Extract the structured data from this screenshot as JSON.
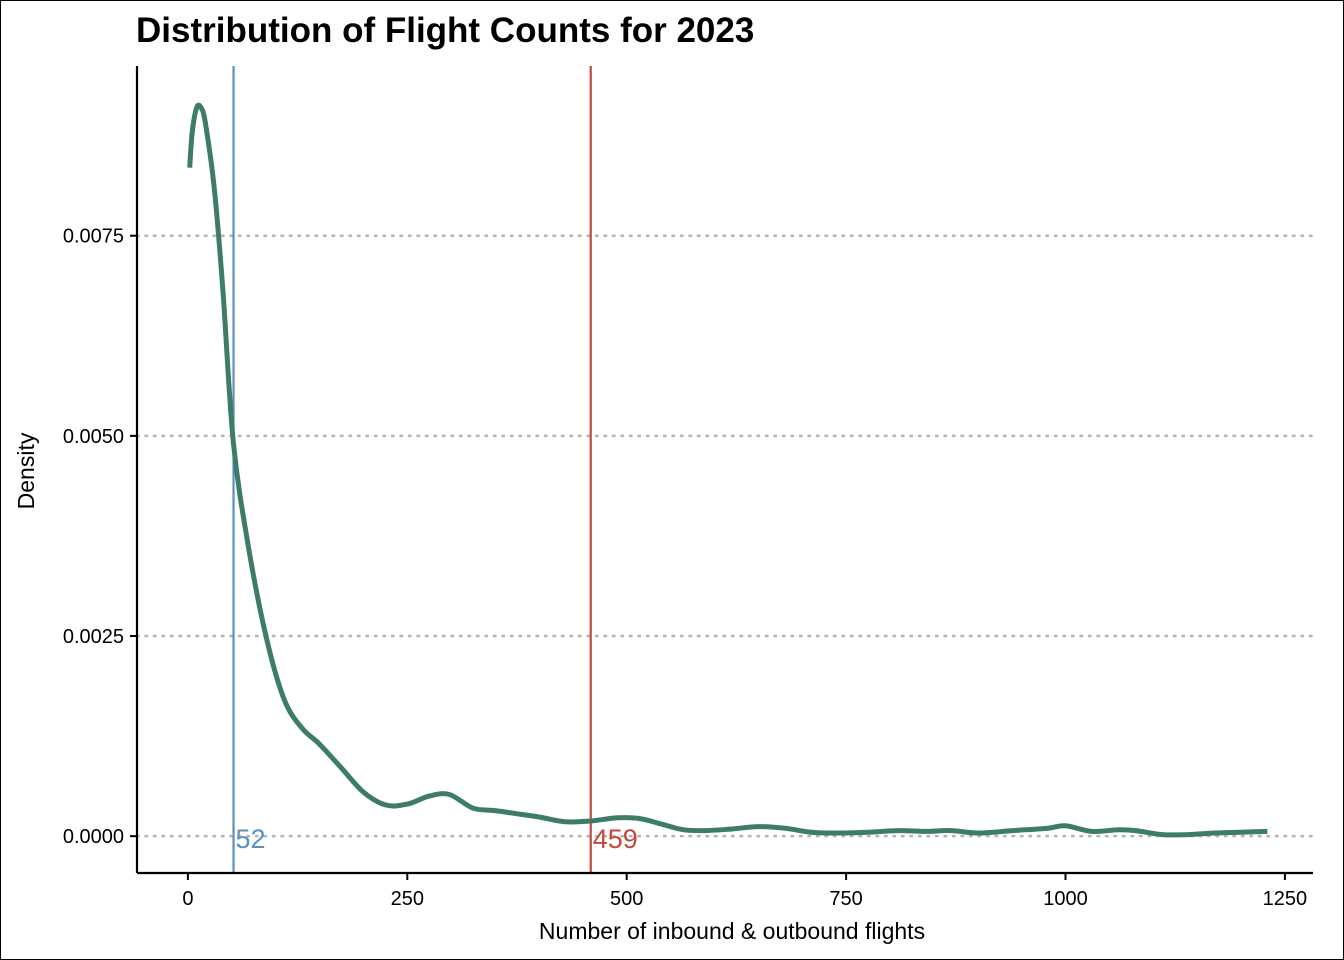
{
  "chart_data": {
    "type": "line",
    "title": "Distribution of Flight Counts for 2023",
    "xlabel": "Number of inbound & outbound flights",
    "ylabel": "Density",
    "xlim": [
      -58,
      1282
    ],
    "ylim": [
      -0.00046,
      0.00962
    ],
    "x_ticks": [
      0,
      250,
      500,
      750,
      1000,
      1250
    ],
    "x_tick_labels": [
      "0",
      "250",
      "500",
      "750",
      "1000",
      "1250"
    ],
    "y_ticks": [
      0,
      0.0025,
      0.005,
      0.0075
    ],
    "y_tick_labels": [
      "0.0000",
      "0.0025",
      "0.0050",
      "0.0075"
    ],
    "grid": "horizontal dotted at y ticks",
    "series": [
      {
        "color": "#3d7d68",
        "x": [
          2,
          5,
          10,
          15,
          20,
          30,
          40,
          52,
          70,
          90,
          110,
          130,
          150,
          175,
          200,
          225,
          250,
          275,
          298,
          325,
          350,
          375,
          400,
          430,
          459,
          490,
          515,
          540,
          565,
          590,
          620,
          650,
          680,
          710,
          740,
          775,
          810,
          840,
          870,
          900,
          940,
          980,
          1000,
          1030,
          1060,
          1080,
          1110,
          1140,
          1170,
          1200,
          1230
        ],
        "y": [
          0.00835,
          0.0088,
          0.0091,
          0.0091,
          0.0089,
          0.0081,
          0.0068,
          0.0049,
          0.00355,
          0.00245,
          0.0017,
          0.00135,
          0.00115,
          0.00085,
          0.00055,
          0.00039,
          0.0004,
          0.0005,
          0.00052,
          0.00035,
          0.00032,
          0.00028,
          0.00024,
          0.00018,
          0.00019,
          0.00023,
          0.00022,
          0.00015,
          8e-05,
          7e-05,
          9e-05,
          0.00012,
          0.0001,
          5e-05,
          4e-05,
          5e-05,
          7e-05,
          6e-05,
          7e-05,
          4e-05,
          7e-05,
          0.0001,
          0.00013,
          6e-05,
          8e-05,
          7e-05,
          2e-05,
          2e-05,
          4e-05,
          5e-05,
          6e-05
        ]
      }
    ],
    "reference_lines": [
      {
        "value": 52,
        "label": "52",
        "color": "#5b90bf"
      },
      {
        "value": 459,
        "label": "459",
        "color": "#c2473c"
      }
    ]
  }
}
